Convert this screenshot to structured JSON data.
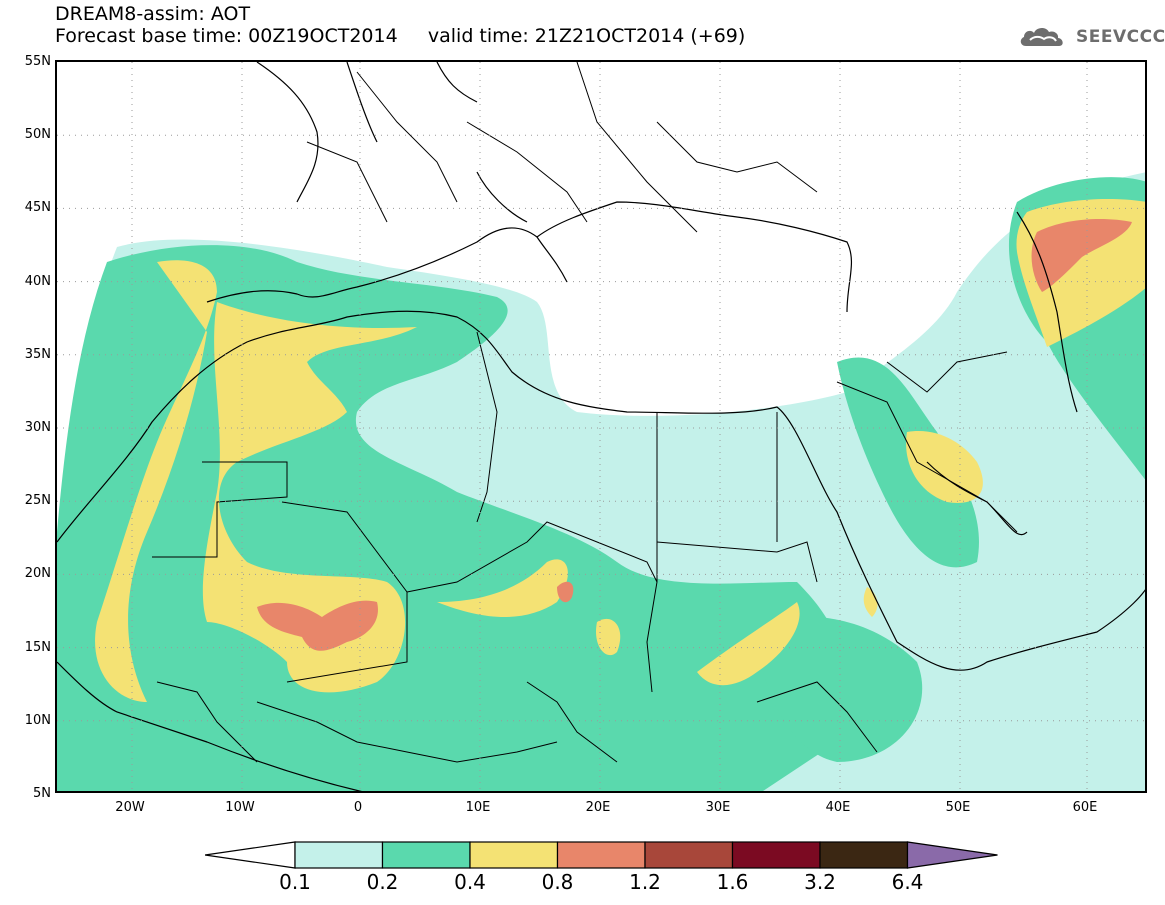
{
  "header": {
    "title_line1": "DREAM8-assim: AOT",
    "title_line2": "Forecast base time: 00Z19OCT2014     valid time: 21Z21OCT2014 (+69)",
    "brand": "SEEVCCC",
    "brand_icon": "cloud-icon"
  },
  "map": {
    "lat_labels": [
      "55N",
      "50N",
      "45N",
      "40N",
      "35N",
      "30N",
      "25N",
      "20N",
      "15N",
      "10N",
      "5N"
    ],
    "lon_labels": [
      "20W",
      "10W",
      "0",
      "10E",
      "20E",
      "30E",
      "40E",
      "50E",
      "60E"
    ],
    "grid": true,
    "field": "aerosol optical thickness"
  },
  "colorbar": {
    "ticks": [
      "0.1",
      "0.2",
      "0.4",
      "0.8",
      "1.2",
      "1.6",
      "3.2",
      "6.4"
    ],
    "colors": [
      "#c4f1ea",
      "#5ad9ad",
      "#f4e274",
      "#e8866a",
      "#a8473a",
      "#7b0a22",
      "#3b2713",
      "#8a6aa9"
    ]
  }
}
